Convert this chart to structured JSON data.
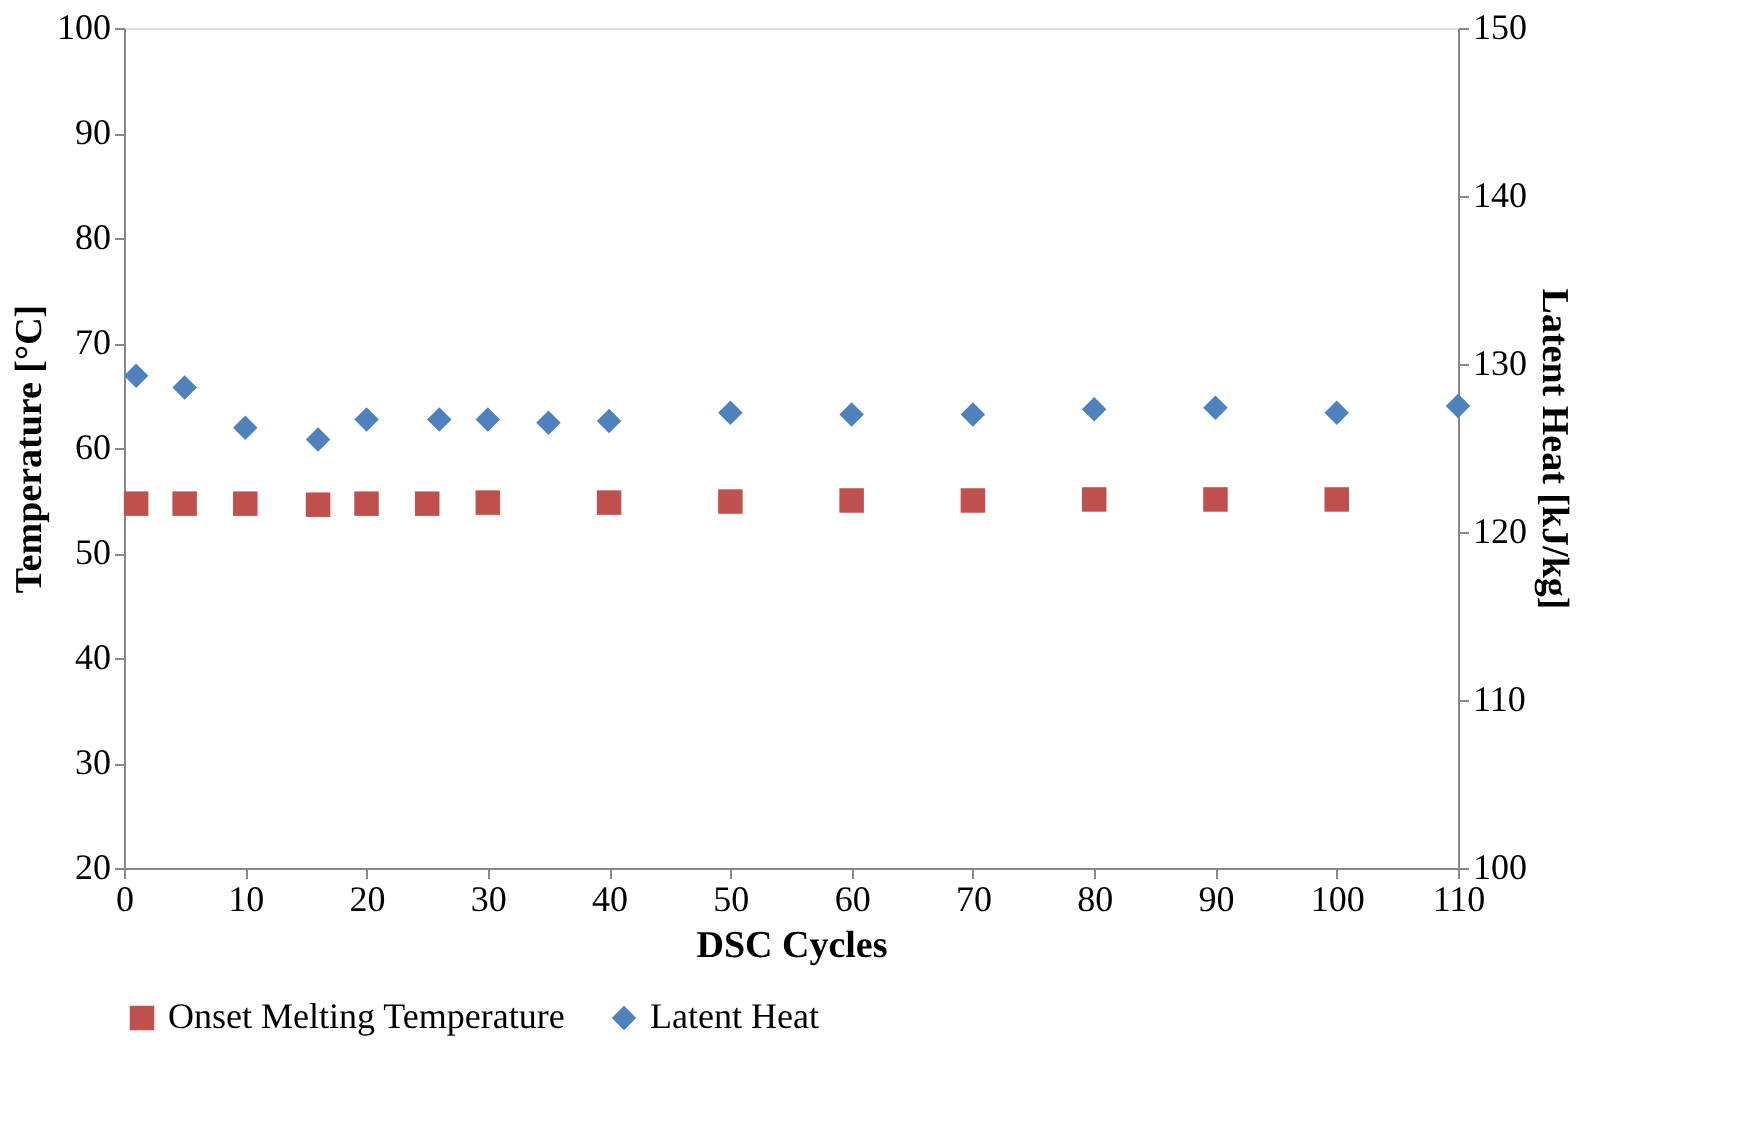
{
  "chart_data": {
    "type": "scatter",
    "xlabel": "DSC Cycles",
    "ylabel": "Temperature [°C]",
    "y2label": "Latent Heat [kJ/kg]",
    "xlim": [
      0,
      110
    ],
    "xticks": [
      0,
      10,
      20,
      30,
      40,
      50,
      60,
      70,
      80,
      90,
      100,
      110
    ],
    "ylim": [
      20,
      100
    ],
    "yticks": [
      20,
      30,
      40,
      50,
      60,
      70,
      80,
      90,
      100
    ],
    "y2lim": [
      100,
      150
    ],
    "y2ticks": [
      100,
      110,
      120,
      130,
      140,
      150
    ],
    "grid": false,
    "legend": "bottom",
    "series": [
      {
        "name": "Onset Melting Temperature",
        "color": "#c0504d",
        "marker": "square",
        "x": [
          1,
          5,
          10,
          16,
          20,
          25,
          30,
          40,
          50,
          60,
          70,
          80,
          90,
          100
        ],
        "values": [
          54.7,
          54.7,
          54.7,
          54.6,
          54.7,
          54.7,
          54.8,
          54.8,
          54.9,
          55.0,
          55.0,
          55.1,
          55.1,
          55.1
        ]
      },
      {
        "name": "Latent Heat",
        "color": "#4f81bd",
        "marker": "diamond",
        "axis": "y2",
        "x": [
          1,
          5,
          10,
          16,
          20,
          26,
          30,
          35,
          40,
          50,
          60,
          70,
          80,
          90,
          100,
          110
        ],
        "values": [
          129.3,
          128.6,
          126.2,
          125.5,
          126.7,
          126.7,
          126.7,
          126.5,
          126.6,
          127.1,
          127.0,
          127.0,
          127.3,
          127.4,
          127.1,
          127.5
        ]
      }
    ]
  }
}
